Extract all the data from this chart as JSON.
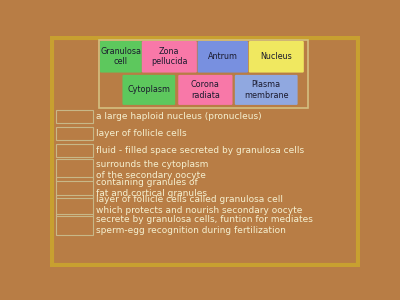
{
  "background_color": "#b87d45",
  "border_color": "#c8a030",
  "tag_colors": {
    "Granulosa\ncell": "#5dc85d",
    "Zona\npellucida": "#f878a8",
    "Antrum": "#7890e0",
    "Nucleus": "#f0e860",
    "Cytoplasm": "#5dc85d",
    "Corona\nradiata": "#f878a8",
    "Plasma\nmembrane": "#90a8e0"
  },
  "tag_row1": [
    "Granulosa\ncell",
    "Zona\npellucida",
    "Antrum",
    "Nucleus"
  ],
  "tag_row2": [
    "Cytoplasm",
    "Corona\nradiata",
    "Plasma\nmembrane"
  ],
  "clue_items": [
    "a large haploid nucleus (pronucleus)",
    "layer of follicle cells",
    "fluid - filled space secreted by granulosa cells",
    "surrounds the cytoplasm\nof the secondary oocyte",
    "containing granules of\nfat and cortical granules",
    "layer of follicle cells called granulosa cell\nwhich protects and nourish secondary oocyte",
    "secrete by granulosa cells, funtion for mediates\nsperm-egg recognition during fertilization"
  ],
  "text_color": "#1a1a2e",
  "clue_text_color": "#f5f0d0",
  "tag_box_border": "#d4c080",
  "answer_box_border": "#c8b888"
}
